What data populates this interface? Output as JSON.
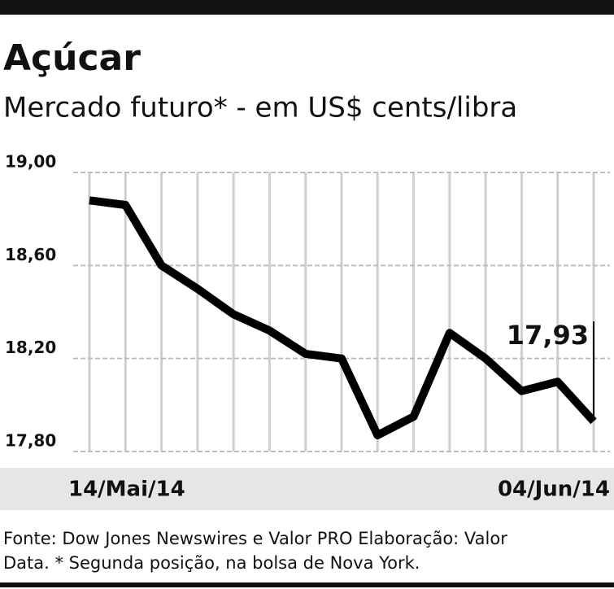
{
  "chart_data": {
    "type": "line",
    "title": "Açúcar",
    "subtitle": "Mercado futuro* - em US$ cents/libra",
    "source": "Fonte: Dow Jones Newswires e Valor PRO Elaboração: Valor Data. * Segunda posição, na bolsa de Nova York.",
    "categories": [
      "14/Mai/14",
      null,
      null,
      null,
      null,
      null,
      null,
      null,
      null,
      null,
      null,
      null,
      null,
      null,
      "04/Jun/14"
    ],
    "values": [
      18.88,
      18.86,
      18.6,
      18.5,
      18.39,
      18.32,
      18.22,
      18.2,
      17.87,
      17.95,
      18.31,
      18.2,
      18.06,
      18.1,
      17.93
    ],
    "value_labels": [
      null,
      null,
      null,
      null,
      null,
      null,
      null,
      null,
      null,
      null,
      null,
      null,
      null,
      null,
      "17,93"
    ],
    "color": "#000000",
    "ylim": [
      17.8,
      19.0
    ],
    "yticks": [
      {
        "value": 17.8,
        "label": "17,80"
      },
      {
        "value": 18.2,
        "label": "18,20"
      },
      {
        "value": 18.6,
        "label": "18,60"
      },
      {
        "value": 19.0,
        "label": "19,00"
      }
    ],
    "grid": true
  }
}
